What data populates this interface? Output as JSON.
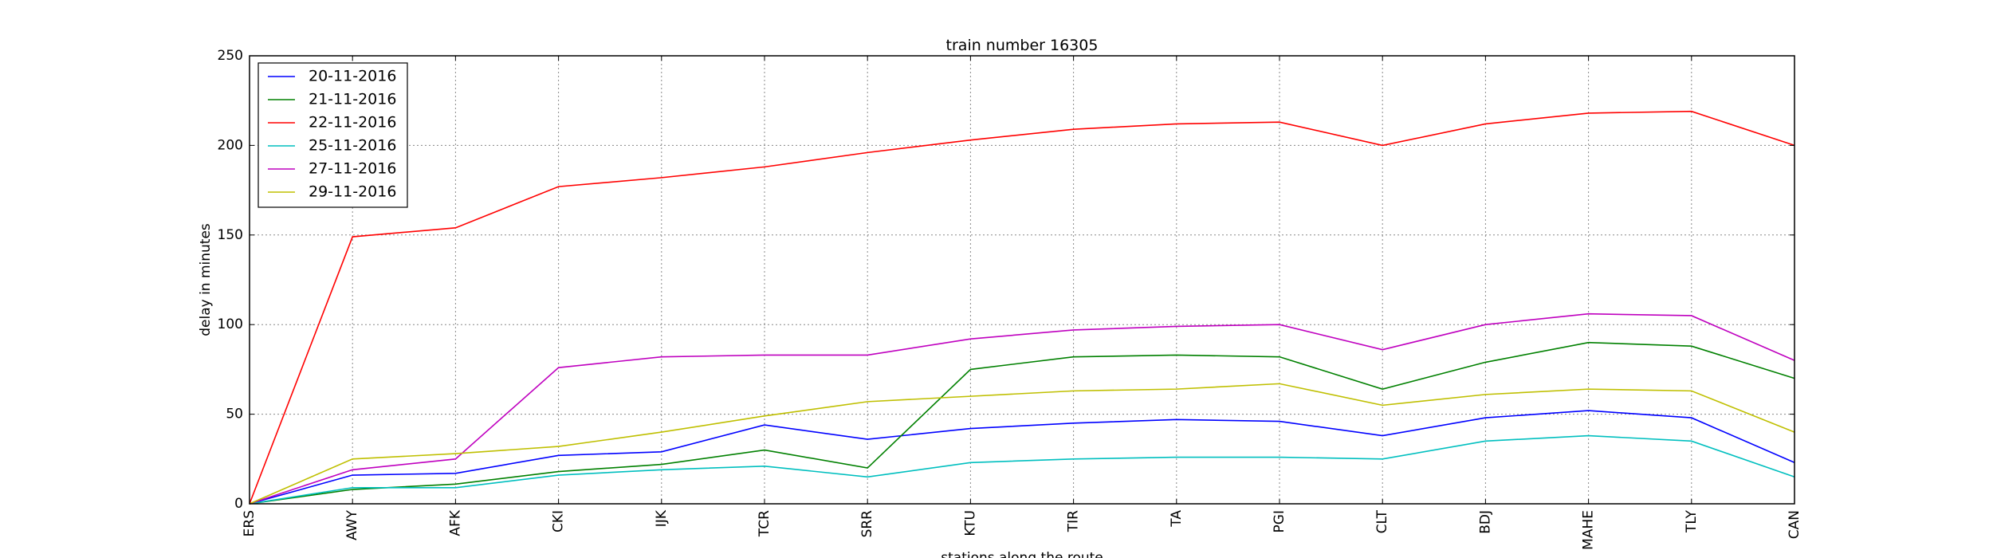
{
  "chart_data": {
    "type": "line",
    "title": "train number 16305",
    "xlabel": "stations along the route",
    "ylabel": "delay in minutes",
    "ylim": [
      0,
      250
    ],
    "yticks": [
      0,
      50,
      100,
      150,
      200,
      250
    ],
    "grid": true,
    "legend_position": "top-left",
    "categories": [
      "ERS",
      "AWY",
      "AFK",
      "CKI",
      "IJK",
      "TCR",
      "SRR",
      "KTU",
      "TIR",
      "TA",
      "PGI",
      "CLT",
      "BDJ",
      "MAHE",
      "TLY",
      "CAN"
    ],
    "series": [
      {
        "name": "20-11-2016",
        "color": "#0000ff",
        "values": [
          0,
          16,
          17,
          27,
          29,
          44,
          36,
          42,
          45,
          47,
          46,
          38,
          48,
          52,
          48,
          23
        ]
      },
      {
        "name": "21-11-2016",
        "color": "#008000",
        "values": [
          0,
          8,
          11,
          18,
          22,
          30,
          20,
          75,
          82,
          83,
          82,
          64,
          79,
          90,
          88,
          70
        ]
      },
      {
        "name": "22-11-2016",
        "color": "#ff0000",
        "values": [
          0,
          149,
          154,
          177,
          182,
          188,
          196,
          203,
          209,
          212,
          213,
          200,
          212,
          218,
          219,
          200
        ]
      },
      {
        "name": "25-11-2016",
        "color": "#00bfbf",
        "values": [
          0,
          9,
          9,
          16,
          19,
          21,
          15,
          23,
          25,
          26,
          26,
          25,
          35,
          38,
          35,
          15
        ]
      },
      {
        "name": "27-11-2016",
        "color": "#bf00bf",
        "values": [
          0,
          19,
          25,
          76,
          82,
          83,
          83,
          92,
          97,
          99,
          100,
          86,
          100,
          106,
          105,
          80
        ]
      },
      {
        "name": "29-11-2016",
        "color": "#bfbf00",
        "values": [
          0,
          25,
          28,
          32,
          40,
          49,
          57,
          60,
          63,
          64,
          67,
          55,
          61,
          64,
          63,
          40
        ]
      }
    ]
  }
}
